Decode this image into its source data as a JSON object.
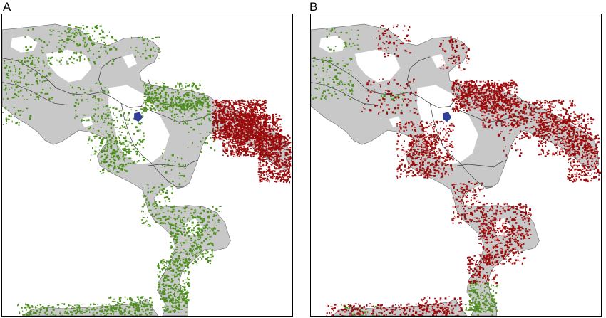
{
  "panels": [
    {
      "label": "A"
    },
    {
      "label": "B"
    }
  ],
  "colors": {
    "land": "#c8c8c8",
    "sea": "#ffffff",
    "border": "#3a3a3a",
    "green_class": "#4e8f1f",
    "red_class": "#9a0d0d",
    "blue_class": "#2f3f9a"
  }
}
